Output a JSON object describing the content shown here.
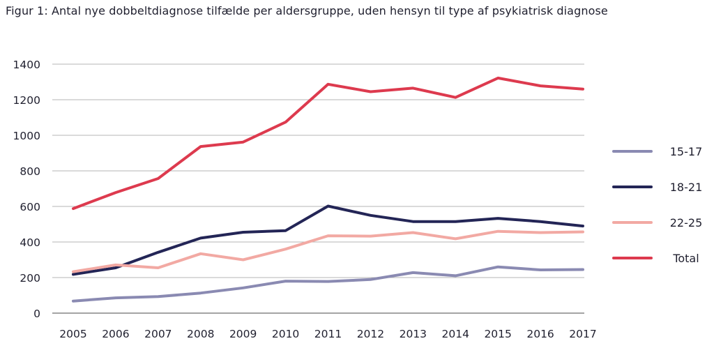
{
  "chart_data": {
    "type": "line",
    "title": "Figur 1: Antal nye dobbeltdiagnose tilfælde per aldersgruppe, uden hensyn til type af psykiatrisk diagnose",
    "xlabel": "",
    "ylabel": "",
    "x": [
      "2005",
      "2006",
      "2007",
      "2008",
      "2009",
      "2010",
      "2011",
      "2012",
      "2013",
      "2014",
      "2015",
      "2016",
      "2017"
    ],
    "ylim": [
      0,
      1400
    ],
    "yticks": [
      "0",
      "200",
      "400",
      "600",
      "800",
      "1000",
      "1200",
      "1400"
    ],
    "grid": true,
    "legend_position": "right",
    "series": [
      {
        "name": "15-17",
        "color": "#8a8ab2",
        "values": [
          68,
          86,
          93,
          113,
          142,
          180,
          178,
          189,
          228,
          210,
          260,
          243,
          245
        ]
      },
      {
        "name": "18-21",
        "color": "#232556",
        "values": [
          218,
          255,
          342,
          422,
          455,
          464,
          602,
          550,
          515,
          515,
          533,
          515,
          490
        ]
      },
      {
        "name": "22-25",
        "color": "#f2a9a3",
        "values": [
          233,
          271,
          255,
          334,
          300,
          360,
          435,
          433,
          453,
          418,
          460,
          453,
          457
        ]
      },
      {
        "name": "Total",
        "color": "#dd3a4e",
        "values": [
          588,
          678,
          757,
          937,
          962,
          1074,
          1287,
          1245,
          1265,
          1213,
          1322,
          1278,
          1260
        ]
      }
    ]
  }
}
